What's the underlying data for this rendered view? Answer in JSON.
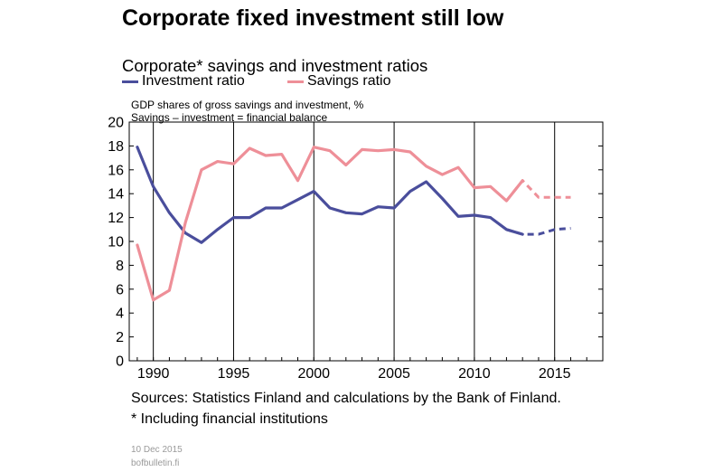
{
  "header": {
    "title": "Corporate fixed investment still low",
    "subtitle": "Corporate* savings and investment ratios"
  },
  "notes": {
    "line1": "GDP shares of gross savings and investment, %",
    "line2": "Savings – investment = financial balance"
  },
  "footer": {
    "sources": "Sources: Statistics Finland and calculations by the Bank of Finland.",
    "footnote": "* Including financial institutions",
    "date": "10 Dec 2015",
    "site": "bofbulletin.fi"
  },
  "chart_data": {
    "type": "line",
    "title": "Corporate* savings and investment ratios",
    "xlabel": "",
    "ylabel": "",
    "xlim": [
      1988.5,
      2018
    ],
    "ylim": [
      0,
      20
    ],
    "yticks": [
      0,
      2,
      4,
      6,
      8,
      10,
      12,
      14,
      16,
      18,
      20
    ],
    "xticks": [
      1990,
      1995,
      2000,
      2005,
      2010,
      2015
    ],
    "grid": "vertical",
    "legend": "top-left",
    "forecast_from": 2013,
    "x": [
      1989,
      1990,
      1991,
      1992,
      1993,
      1994,
      1995,
      1996,
      1997,
      1998,
      1999,
      2000,
      2001,
      2002,
      2003,
      2004,
      2005,
      2006,
      2007,
      2008,
      2009,
      2010,
      2011,
      2012,
      2013,
      2014,
      2015,
      2016
    ],
    "series": [
      {
        "name": "Investment ratio",
        "color": "#4a4e9c",
        "values": [
          17.9,
          14.6,
          12.4,
          10.7,
          9.9,
          11.0,
          12.0,
          12.0,
          12.8,
          12.8,
          13.5,
          14.2,
          12.8,
          12.4,
          12.3,
          12.9,
          12.8,
          14.2,
          15.0,
          13.6,
          12.1,
          12.2,
          12.0,
          11.0,
          10.6,
          10.6,
          11.0,
          11.1
        ]
      },
      {
        "name": "Savings ratio",
        "color": "#ee8f98",
        "values": [
          9.7,
          5.1,
          5.9,
          11.6,
          16.0,
          16.7,
          16.5,
          17.8,
          17.2,
          17.3,
          15.1,
          17.9,
          17.6,
          16.4,
          17.7,
          17.6,
          17.7,
          17.5,
          16.3,
          15.6,
          16.2,
          14.5,
          14.6,
          13.4,
          15.1,
          13.7,
          13.7,
          13.7
        ]
      }
    ]
  }
}
